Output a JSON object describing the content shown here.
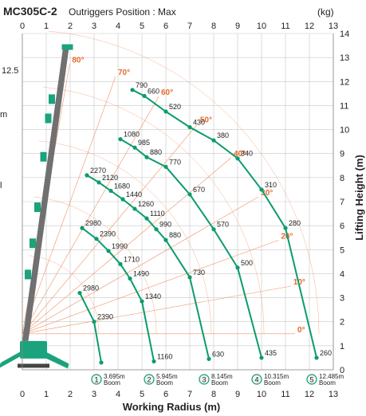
{
  "header": {
    "model": "MC305C-2",
    "subtitle": "Outriggers Position : Max",
    "unit": "(kg)"
  },
  "side_labels": {
    "left_value": "12.5",
    "left_m": "m",
    "left_l": "l"
  },
  "colors": {
    "angle_line": "#ef7e4a",
    "angle_label": "#e9692c",
    "capacity_curve": "#0b9c6e",
    "crane_boom": "#707070",
    "crane_body": "#1aa37c",
    "grid": "#c8c8c8",
    "text": "#222222"
  },
  "chart_data": {
    "type": "line",
    "title": "",
    "xlabel": "Working Radius (m)",
    "ylabel": "Lifting Height (m)",
    "xlim": [
      0,
      13
    ],
    "ylim": [
      0,
      14
    ],
    "x_ticks": [
      "0",
      "1",
      "2",
      "3",
      "4",
      "5",
      "6",
      "7",
      "8",
      "9",
      "10",
      "11",
      "12",
      "13"
    ],
    "y_ticks": [
      "0",
      "1",
      "2",
      "3",
      "4",
      "5",
      "6",
      "7",
      "8",
      "9",
      "10",
      "11",
      "12",
      "13",
      "14"
    ],
    "grid": true,
    "boom_angles": [
      {
        "label": "80°",
        "deg": 80
      },
      {
        "label": "70°",
        "deg": 70
      },
      {
        "label": "60°",
        "deg": 60
      },
      {
        "label": "50°",
        "deg": 50
      },
      {
        "label": "40°",
        "deg": 40
      },
      {
        "label": "30°",
        "deg": 30
      },
      {
        "label": "20°",
        "deg": 20
      },
      {
        "label": "10°",
        "deg": 10
      },
      {
        "label": "0°",
        "deg": 0
      }
    ],
    "series": [
      {
        "name": "3.695m Boom",
        "marker": "1",
        "boom_line1": "3.695m",
        "boom_line2": "Boom",
        "points": [
          {
            "x": 2.4,
            "y": 3.2,
            "label": "2980"
          },
          {
            "x": 3.0,
            "y": 2.0,
            "label": "2390"
          },
          {
            "x": 3.3,
            "y": 0.3,
            "label": ""
          }
        ]
      },
      {
        "name": "5.945m Boom",
        "marker": "2",
        "boom_line1": "5.945m",
        "boom_line2": "Boom",
        "points": [
          {
            "x": 2.5,
            "y": 5.9,
            "label": "2980"
          },
          {
            "x": 3.1,
            "y": 5.45,
            "label": "2390"
          },
          {
            "x": 3.6,
            "y": 4.95,
            "label": "1990"
          },
          {
            "x": 4.1,
            "y": 4.4,
            "label": "1710"
          },
          {
            "x": 4.5,
            "y": 3.8,
            "label": "1490"
          },
          {
            "x": 5.0,
            "y": 2.85,
            "label": "1340"
          },
          {
            "x": 5.5,
            "y": 0.35,
            "label": "1160"
          }
        ]
      },
      {
        "name": "8.145m Boom",
        "marker": "3",
        "boom_line1": "8.145m",
        "boom_line2": "Boom",
        "points": [
          {
            "x": 2.7,
            "y": 8.1,
            "label": "2270"
          },
          {
            "x": 3.2,
            "y": 7.8,
            "label": "2120"
          },
          {
            "x": 3.7,
            "y": 7.45,
            "label": "1680"
          },
          {
            "x": 4.2,
            "y": 7.1,
            "label": "1440"
          },
          {
            "x": 4.7,
            "y": 6.7,
            "label": "1260"
          },
          {
            "x": 5.2,
            "y": 6.3,
            "label": "1110"
          },
          {
            "x": 5.6,
            "y": 5.85,
            "label": "990"
          },
          {
            "x": 6.0,
            "y": 5.4,
            "label": "880"
          },
          {
            "x": 7.0,
            "y": 3.85,
            "label": "730"
          },
          {
            "x": 7.8,
            "y": 0.45,
            "label": "630"
          }
        ]
      },
      {
        "name": "10.315m Boom",
        "marker": "4",
        "boom_line1": "10.315m",
        "boom_line2": "Boom",
        "points": [
          {
            "x": 4.1,
            "y": 9.6,
            "label": "1080"
          },
          {
            "x": 4.7,
            "y": 9.25,
            "label": "985"
          },
          {
            "x": 5.2,
            "y": 8.85,
            "label": "880"
          },
          {
            "x": 6.0,
            "y": 8.45,
            "label": "770"
          },
          {
            "x": 7.0,
            "y": 7.3,
            "label": "670"
          },
          {
            "x": 8.0,
            "y": 5.85,
            "label": "570"
          },
          {
            "x": 9.0,
            "y": 4.25,
            "label": "500"
          },
          {
            "x": 10.0,
            "y": 0.5,
            "label": "435"
          }
        ]
      },
      {
        "name": "12.485m Boom",
        "marker": "5",
        "boom_line1": "12.485m",
        "boom_line2": "Boom",
        "points": [
          {
            "x": 4.6,
            "y": 11.65,
            "label": "790"
          },
          {
            "x": 5.1,
            "y": 11.4,
            "label": "660"
          },
          {
            "x": 6.0,
            "y": 10.75,
            "label": "520"
          },
          {
            "x": 7.0,
            "y": 10.1,
            "label": "430"
          },
          {
            "x": 8.0,
            "y": 9.55,
            "label": "380"
          },
          {
            "x": 9.0,
            "y": 8.8,
            "label": "340"
          },
          {
            "x": 10.0,
            "y": 7.5,
            "label": "310"
          },
          {
            "x": 11.0,
            "y": 5.9,
            "label": "280"
          },
          {
            "x": 12.3,
            "y": 0.5,
            "label": "260"
          }
        ]
      }
    ]
  }
}
